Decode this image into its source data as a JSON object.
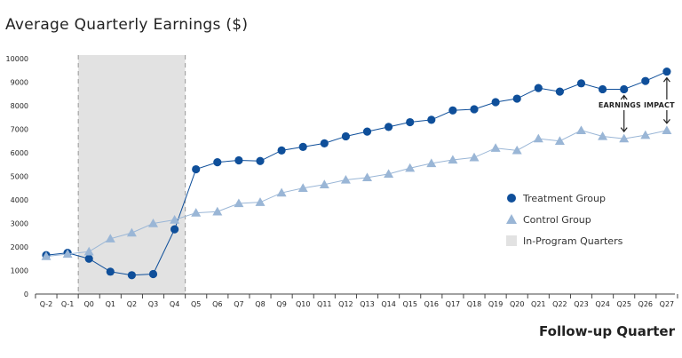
{
  "chart_data": {
    "type": "line",
    "title": "Average Quarterly Earnings ($)",
    "xlabel": "Follow-up Quarter",
    "ylabel": "",
    "ylim": [
      0,
      10000
    ],
    "yticks": [
      0,
      1000,
      2000,
      3000,
      4000,
      5000,
      6000,
      7000,
      8000,
      9000,
      10000
    ],
    "grid": false,
    "legend_position": "right",
    "categories": [
      "Q-2",
      "Q-1",
      "Q0",
      "Q1",
      "Q2",
      "Q3",
      "Q4",
      "Q5",
      "Q6",
      "Q7",
      "Q8",
      "Q9",
      "Q10",
      "Q11",
      "Q12",
      "Q13",
      "Q14",
      "Q15",
      "Q16",
      "Q17",
      "Q18",
      "Q19",
      "Q20",
      "Q21",
      "Q22",
      "Q23",
      "Q24",
      "Q25",
      "Q26",
      "Q27"
    ],
    "series": [
      {
        "name": "Treatment Group",
        "marker": "circle",
        "color": "#0f4f9a",
        "values": [
          1650,
          1750,
          1500,
          950,
          800,
          850,
          2750,
          5300,
          5600,
          5680,
          5650,
          6100,
          6250,
          6400,
          6700,
          6900,
          7100,
          7300,
          7400,
          7800,
          7850,
          8150,
          8300,
          8750,
          8600,
          8950,
          8700,
          8700,
          9050,
          9450
        ]
      },
      {
        "name": "Control Group",
        "marker": "triangle",
        "color": "#9ab6d6",
        "values": [
          1600,
          1700,
          1800,
          2350,
          2600,
          3000,
          3150,
          3450,
          3500,
          3850,
          3900,
          4300,
          4500,
          4650,
          4850,
          4950,
          5100,
          5350,
          5550,
          5700,
          5800,
          6200,
          6100,
          6600,
          6500,
          6950,
          6700,
          6600,
          6750,
          6950
        ]
      }
    ],
    "shaded_region": {
      "label": "In-Program Quarters",
      "start": "Q0",
      "end": "Q4",
      "color": "#e2e2e2"
    },
    "annotations": [
      {
        "text": "EARNINGS IMPACT",
        "between": [
          "Q25",
          "Q27"
        ]
      }
    ]
  },
  "colors": {
    "treatment": "#0f4f9a",
    "control": "#9ab6d6",
    "shade": "#e2e2e2",
    "axis": "#444444"
  }
}
